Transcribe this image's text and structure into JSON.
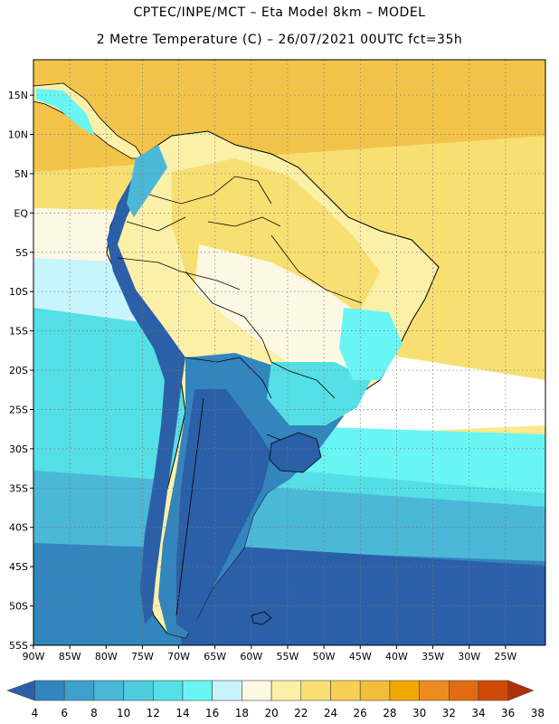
{
  "title_line1": "CPTEC/INPE/MCT –  Eta Model 8km – MODEL",
  "title_line2": "2 Metre Temperature (C) – 26/07/2021 00UTC fct=35h",
  "map": {
    "lat_labels": [
      "15N",
      "10N",
      "5N",
      "EQ",
      "5S",
      "10S",
      "15S",
      "20S",
      "25S",
      "30S",
      "35S",
      "40S",
      "45S",
      "50S",
      "55S"
    ],
    "lon_labels": [
      "90W",
      "85W",
      "80W",
      "75W",
      "70W",
      "65W",
      "60W",
      "55W",
      "50W",
      "45W",
      "40W",
      "35W",
      "30W",
      "25W"
    ]
  },
  "colorbar": {
    "labels": [
      "4",
      "6",
      "8",
      "10",
      "12",
      "14",
      "16",
      "18",
      "20",
      "22",
      "24",
      "26",
      "28",
      "30",
      "32",
      "34",
      "36",
      "38"
    ],
    "colors": [
      "#2b5fa8",
      "#3385be",
      "#3ea0cc",
      "#4cb8d8",
      "#4ecdde",
      "#55dfe6",
      "#6af5f5",
      "#c8f4fb",
      "#fdf8e4",
      "#fbf0a8",
      "#f8df72",
      "#f7cf55",
      "#f2bd3a",
      "#f0a800",
      "#ec8c1e",
      "#e26a10",
      "#cf4a08",
      "#b03006"
    ]
  },
  "colors": {
    "ocean_north": "#f4c656",
    "ocean_tropical": "#f8df72",
    "ocean_mid": "#6af5f5",
    "ocean_south": "#2b5fa8",
    "land_warm": "#fbf0a8",
    "land_cool": "#55dfe6",
    "andes": "#2b5fa8"
  }
}
